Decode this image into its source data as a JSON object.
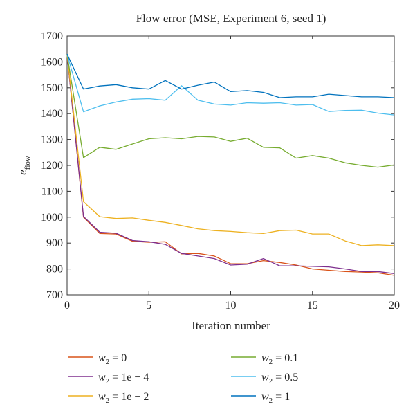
{
  "chart_data": {
    "type": "line",
    "title": "Flow error (MSE, Experiment 6, seed 1)",
    "xlabel": "Iteration number",
    "ylabel": "e",
    "ylabel_subscript": "flow",
    "xlim": [
      0,
      20
    ],
    "ylim": [
      700,
      1700
    ],
    "xticks": [
      0,
      5,
      10,
      15,
      20
    ],
    "yticks": [
      700,
      800,
      900,
      1000,
      1100,
      1200,
      1300,
      1400,
      1500,
      1600,
      1700
    ],
    "grid": false,
    "legend_position": "below",
    "x": [
      0,
      1,
      2,
      3,
      4,
      5,
      6,
      7,
      8,
      9,
      10,
      11,
      12,
      13,
      14,
      15,
      16,
      17,
      18,
      19,
      20
    ],
    "series": [
      {
        "label_base": "w",
        "label_sub": "2",
        "label_value": " = 0",
        "color": "#d95319",
        "values": [
          1630,
          1000,
          937,
          935,
          907,
          903,
          905,
          858,
          860,
          850,
          820,
          820,
          832,
          825,
          815,
          800,
          795,
          790,
          788,
          785,
          775
        ]
      },
      {
        "label_base": "w",
        "label_sub": "2",
        "label_value": " = 1e − 4",
        "color": "#7e2f8e",
        "values": [
          1630,
          1003,
          942,
          938,
          910,
          905,
          895,
          860,
          850,
          840,
          815,
          818,
          840,
          812,
          812,
          810,
          808,
          800,
          790,
          790,
          782
        ]
      },
      {
        "label_base": "w",
        "label_sub": "2",
        "label_value": " = 1e − 2",
        "color": "#edb120",
        "values": [
          1630,
          1060,
          1002,
          995,
          997,
          988,
          980,
          968,
          955,
          948,
          945,
          940,
          937,
          948,
          950,
          935,
          935,
          908,
          890,
          893,
          890
        ]
      },
      {
        "label_base": "w",
        "label_sub": "2",
        "label_value": " = 0.1",
        "color": "#77ac30",
        "values": [
          1630,
          1230,
          1270,
          1262,
          1283,
          1303,
          1307,
          1303,
          1312,
          1310,
          1293,
          1305,
          1270,
          1268,
          1228,
          1238,
          1228,
          1210,
          1200,
          1193,
          1202
        ]
      },
      {
        "label_base": "w",
        "label_sub": "2",
        "label_value": " = 0.5",
        "color": "#4dbeee",
        "values": [
          1630,
          1407,
          1430,
          1445,
          1456,
          1458,
          1452,
          1508,
          1452,
          1437,
          1433,
          1442,
          1440,
          1442,
          1433,
          1435,
          1408,
          1412,
          1413,
          1402,
          1395
        ]
      },
      {
        "label_base": "w",
        "label_sub": "2",
        "label_value": " = 1",
        "color": "#0072bd",
        "values": [
          1630,
          1495,
          1507,
          1512,
          1500,
          1495,
          1528,
          1495,
          1510,
          1522,
          1485,
          1489,
          1482,
          1462,
          1465,
          1465,
          1475,
          1470,
          1465,
          1465,
          1462
        ]
      }
    ]
  }
}
